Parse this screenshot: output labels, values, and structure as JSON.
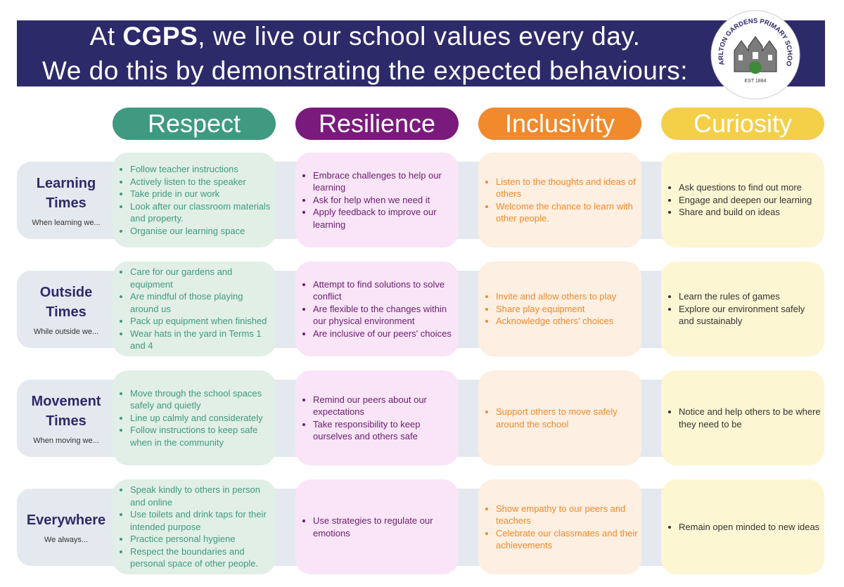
{
  "header": {
    "line1_start": "At ",
    "line1_bold": "CGPS",
    "line1_end": ", we live our school values every day.",
    "line2": "We do this by demonstrating the expected behaviours:"
  },
  "logo": {
    "name": "CARLTON GARDENS PRIMARY SCHOOL",
    "established": "EST 1884"
  },
  "values": [
    "Respect",
    "Resilience",
    "Inclusivity",
    "Curiosity"
  ],
  "rows": [
    {
      "title": "Learning Times",
      "subtitle": "When learning we...",
      "cells": [
        [
          "Follow teacher instructions",
          "Actively listen to the speaker",
          "Take pride in our work",
          "Look after our classroom materials and property.",
          "Organise our learning space"
        ],
        [
          "Embrace challenges to help our learning",
          "Ask for help when we need it",
          "Apply feedback to improve our learning"
        ],
        [
          "Listen to the thoughts and ideas of others",
          "Welcome the chance to learn with other people."
        ],
        [
          "Ask questions to find out more",
          "Engage and deepen our learning",
          "Share and build on ideas"
        ]
      ]
    },
    {
      "title": "Outside Times",
      "subtitle": "While outside we...",
      "cells": [
        [
          "Care for our gardens and equipment",
          "Are mindful of those playing around us",
          "Pack up equipment when finished",
          "Wear hats in the yard in Terms 1 and 4"
        ],
        [
          "Attempt to find solutions to solve conflict",
          "Are flexible to the changes within our physical environment",
          "Are inclusive of our peers' choices"
        ],
        [
          "Invite and allow others to play",
          "Share play equipment",
          "Acknowledge others' choices"
        ],
        [
          "Learn the rules of games",
          "Explore our environment safely and sustainably"
        ]
      ]
    },
    {
      "title": "Movement Times",
      "subtitle": "When moving we...",
      "cells": [
        [
          "Move through the school spaces safely and quietly",
          "Line up calmly and considerately",
          "Follow instructions to keep safe when in the community"
        ],
        [
          "Remind our peers about our expectations",
          "Take responsibility to keep ourselves and others safe"
        ],
        [
          "Support others to move safely around the school"
        ],
        [
          "Notice and help others to be where they need to be"
        ]
      ]
    },
    {
      "title": "Everywhere",
      "subtitle": "We always...",
      "cells": [
        [
          "Speak kindly to others in person and online",
          "Use toilets and drink taps for their intended purpose",
          "Practice personal hygiene",
          "Respect the boundaries and personal space of other people."
        ],
        [
          "Use strategies to regulate our emotions"
        ],
        [
          "Show empathy to our peers and teachers",
          "Celebrate our classmates and their achievements"
        ],
        [
          "Remain open minded to new ideas"
        ]
      ]
    }
  ]
}
